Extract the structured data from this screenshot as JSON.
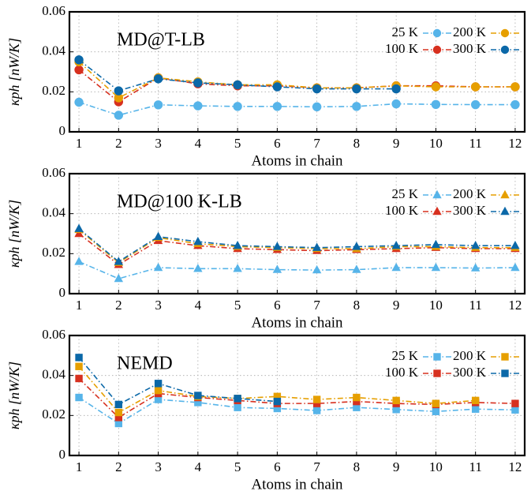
{
  "chart_data": [
    {
      "type": "line",
      "marker": "circle",
      "label": "MD@T-LB",
      "label_color": "#1a8a4a",
      "x_label": "Atoms in chain",
      "y_label": "κph [nW/K]",
      "x": [
        1,
        2,
        3,
        4,
        5,
        6,
        7,
        8,
        9,
        10,
        11,
        12
      ],
      "xlim": [
        0.76,
        12.24
      ],
      "xticks": [
        1,
        2,
        3,
        4,
        5,
        6,
        7,
        8,
        9,
        10,
        11,
        12
      ],
      "ylim": [
        0,
        0.06
      ],
      "yticks": [
        0,
        0.02,
        0.04,
        0.06
      ],
      "grid": true,
      "legend": "upper right",
      "series": [
        {
          "name": "25 K",
          "color": "#56b4e9",
          "values": [
            0.0148,
            0.0083,
            0.0135,
            0.013,
            0.0127,
            0.0127,
            0.0125,
            0.0127,
            0.014,
            0.0137,
            0.0136,
            0.0136
          ]
        },
        {
          "name": "100 K",
          "color": "#d7301f",
          "values": [
            0.031,
            0.015,
            0.027,
            0.024,
            0.023,
            0.023,
            0.022,
            0.022,
            0.023,
            0.023,
            0.0225,
            0.0225
          ]
        },
        {
          "name": "200 K",
          "color": "#e69f00",
          "values": [
            0.035,
            0.017,
            0.027,
            0.025,
            0.0235,
            0.0235,
            0.022,
            0.022,
            0.023,
            0.0225,
            0.0225,
            0.0225
          ]
        },
        {
          "name": "300 K",
          "color": "#0b68a8",
          "values": [
            0.036,
            0.0205,
            0.0265,
            0.0245,
            0.0235,
            0.0225,
            0.0215,
            0.0215,
            0.0215,
            null,
            null,
            null
          ]
        }
      ]
    },
    {
      "type": "line",
      "marker": "triangle",
      "label": "MD@100 K-LB",
      "label_color": "#4ab0cc",
      "x_label": "Atoms in chain",
      "y_label": "κph [nW/K]",
      "x": [
        1,
        2,
        3,
        4,
        5,
        6,
        7,
        8,
        9,
        10,
        11,
        12
      ],
      "xlim": [
        0.76,
        12.24
      ],
      "xticks": [
        1,
        2,
        3,
        4,
        5,
        6,
        7,
        8,
        9,
        10,
        11,
        12
      ],
      "ylim": [
        0,
        0.06
      ],
      "yticks": [
        0,
        0.02,
        0.04,
        0.06
      ],
      "grid": true,
      "legend": "upper right",
      "series": [
        {
          "name": "25 K",
          "color": "#56b4e9",
          "values": [
            0.016,
            0.0075,
            0.013,
            0.0125,
            0.0125,
            0.012,
            0.0118,
            0.012,
            0.013,
            0.013,
            0.0128,
            0.013
          ]
        },
        {
          "name": "100 K",
          "color": "#d7301f",
          "values": [
            0.03,
            0.0145,
            0.0265,
            0.024,
            0.0225,
            0.022,
            0.0215,
            0.022,
            0.0225,
            0.023,
            0.0225,
            0.0225
          ]
        },
        {
          "name": "200 K",
          "color": "#e69f00",
          "values": [
            0.032,
            0.0155,
            0.028,
            0.025,
            0.0235,
            0.023,
            0.0225,
            0.0225,
            0.0235,
            0.0235,
            0.023,
            0.023
          ]
        },
        {
          "name": "300 K",
          "color": "#0b68a8",
          "values": [
            0.0325,
            0.016,
            0.0285,
            0.026,
            0.024,
            0.0235,
            0.023,
            0.0235,
            0.024,
            0.0245,
            0.024,
            0.024
          ]
        }
      ]
    },
    {
      "type": "line",
      "marker": "square",
      "label": "NEMD",
      "label_color": "#8a1aa8",
      "x_label": "Atoms in chain",
      "y_label": "κph [nW/K]",
      "x": [
        1,
        2,
        3,
        4,
        5,
        6,
        7,
        8,
        9,
        10,
        11,
        12
      ],
      "xlim": [
        0.76,
        12.24
      ],
      "xticks": [
        1,
        2,
        3,
        4,
        5,
        6,
        7,
        8,
        9,
        10,
        11,
        12
      ],
      "ylim": [
        0,
        0.06
      ],
      "yticks": [
        0,
        0.02,
        0.04,
        0.06
      ],
      "grid": true,
      "legend": "upper right",
      "series": [
        {
          "name": "25 K",
          "color": "#56b4e9",
          "values": [
            0.029,
            0.016,
            0.028,
            0.0265,
            0.024,
            0.0235,
            0.0225,
            0.024,
            0.023,
            0.022,
            0.0232,
            0.0228
          ]
        },
        {
          "name": "100 K",
          "color": "#d7301f",
          "values": [
            0.0385,
            0.019,
            0.031,
            0.029,
            0.0275,
            0.026,
            0.026,
            0.027,
            0.026,
            0.0255,
            0.0265,
            0.026
          ]
        },
        {
          "name": "200 K",
          "color": "#e69f00",
          "values": [
            0.0445,
            0.0215,
            0.0325,
            0.0295,
            0.0285,
            0.0295,
            0.028,
            0.029,
            0.0275,
            0.026,
            0.0275,
            null
          ]
        },
        {
          "name": "300 K",
          "color": "#0b68a8",
          "values": [
            0.049,
            0.0255,
            0.036,
            0.03,
            0.0285,
            0.027,
            null,
            null,
            null,
            null,
            null,
            null
          ]
        }
      ]
    }
  ]
}
